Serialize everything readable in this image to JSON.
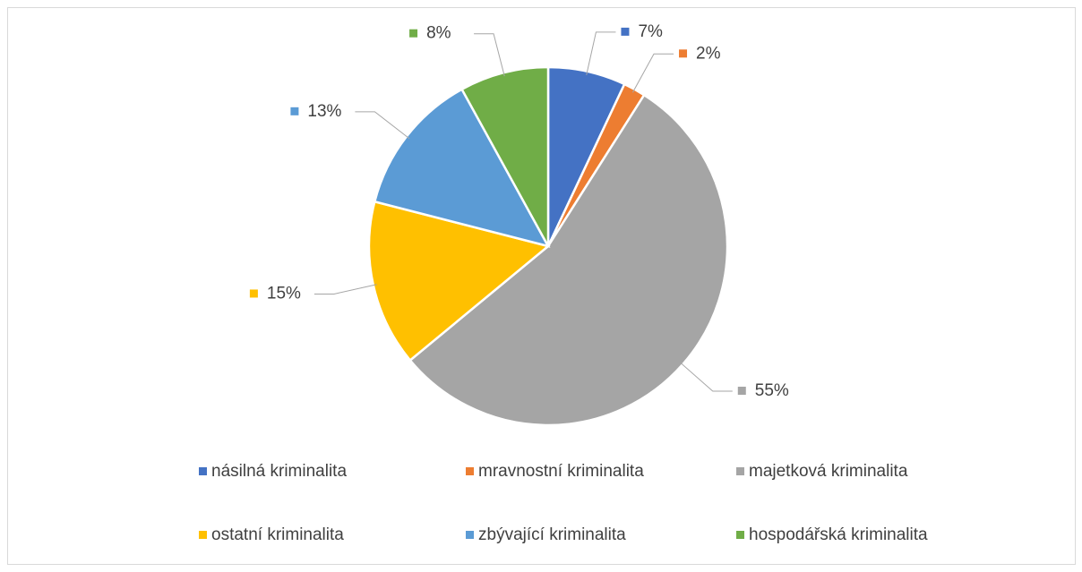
{
  "chart_data": {
    "type": "pie",
    "categories": [
      "násilná kriminalita",
      "mravnostní kriminalita",
      "majetková kriminalita",
      "ostatní kriminalita",
      "zbývající kriminalita",
      "hospodářská kriminalita"
    ],
    "values": [
      7,
      2,
      55,
      15,
      13,
      8
    ],
    "value_labels": [
      "7%",
      "2%",
      "55%",
      "15%",
      "13%",
      "8%"
    ],
    "colors": [
      "#4472c4",
      "#ed7d31",
      "#a5a5a5",
      "#ffc000",
      "#5b9bd5",
      "#70ad47"
    ],
    "legend": "bottom"
  }
}
